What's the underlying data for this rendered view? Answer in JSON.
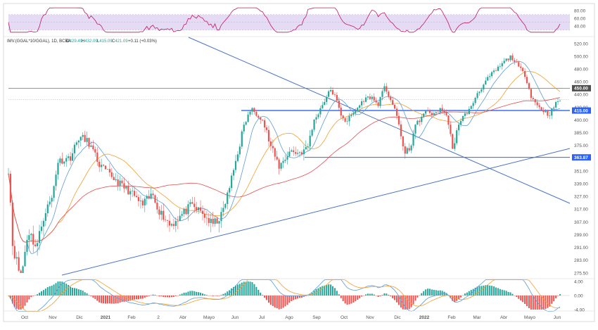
{
  "chart_data": {
    "type": "candlestick",
    "legend": "IMV.(GGAL*10/GGAL), 1D, BCBA",
    "ohlc": {
      "open_label": "O",
      "open": "429.49",
      "high_label": "H",
      "high": "432.09",
      "low_label": "L",
      "low": "415.09",
      "close_label": "C",
      "close": "421.09",
      "change": "+0.11 (+0.03%)"
    },
    "x_ticks": [
      "Oct",
      "Nov",
      "Dic",
      "2021",
      "Feb",
      "2",
      "Abr",
      "Mayo",
      "Jun",
      "Jul",
      "Ago",
      "Sep",
      "Oct",
      "Nov",
      "Dic",
      "2022",
      "Feb",
      "Mar",
      "Abr",
      "Mayo",
      "Jun"
    ],
    "y_ticks_main": [
      "520.00",
      "500.00",
      "480.00",
      "460.00",
      "440.00",
      "420.00",
      "400.00",
      "385.00",
      "375.00",
      "363.00",
      "351.00",
      "339.00",
      "327.00",
      "317.00",
      "307.00",
      "299.00",
      "291.00",
      "283.00",
      "275.50"
    ],
    "y_ticks_rsi": [
      "80.00",
      "60.00",
      "40.00"
    ],
    "y_ticks_macd": [
      "4.00",
      "0.00",
      "-4.00"
    ],
    "price_tags": [
      "450.00",
      "415.00",
      "363.87"
    ],
    "colors": {
      "up": "#26a69a",
      "down": "#ef5350",
      "ma_fast": "#5b9bd5",
      "ma_mid": "#f0a030",
      "ma_slow": "#e05050",
      "rsi": "#c2185b",
      "rsi_band": "#e6dbf5",
      "trend": "#4a72c4",
      "tag_dark": "#505050",
      "tag_blue": "#2962ff"
    }
  }
}
